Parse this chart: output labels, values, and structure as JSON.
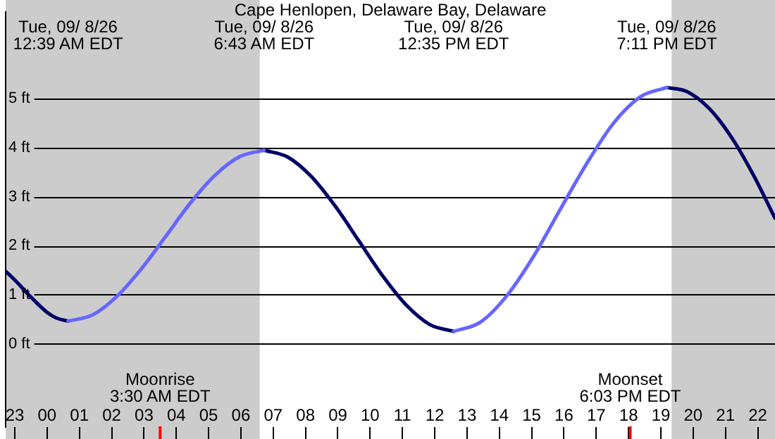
{
  "chart_data": {
    "type": "line",
    "title": "Cape Henlopen, Delaware Bay, Delaware",
    "xlim": [
      "--09-07T22:43",
      "--09-08T22:32"
    ],
    "xticks": [
      {
        "value": "--09-07T23:00",
        "label": "23"
      },
      {
        "value": "--09-08T00:00",
        "label": "00"
      },
      {
        "value": "--09-08T01:00",
        "label": "01"
      },
      {
        "value": "--09-08T02:00",
        "label": "02"
      },
      {
        "value": "--09-08T03:00",
        "label": "03"
      },
      {
        "value": "--09-08T04:00",
        "label": "04"
      },
      {
        "value": "--09-08T05:00",
        "label": "05"
      },
      {
        "value": "--09-08T06:00",
        "label": "06"
      },
      {
        "value": "--09-08T07:00",
        "label": "07"
      },
      {
        "value": "--09-08T08:00",
        "label": "08"
      },
      {
        "value": "--09-08T09:00",
        "label": "09"
      },
      {
        "value": "--09-08T10:00",
        "label": "10"
      },
      {
        "value": "--09-08T11:00",
        "label": "11"
      },
      {
        "value": "--09-08T12:00",
        "label": "12"
      },
      {
        "value": "--09-08T13:00",
        "label": "13"
      },
      {
        "value": "--09-08T14:00",
        "label": "14"
      },
      {
        "value": "--09-08T15:00",
        "label": "15"
      },
      {
        "value": "--09-08T16:00",
        "label": "16"
      },
      {
        "value": "--09-08T17:00",
        "label": "17"
      },
      {
        "value": "--09-08T18:00",
        "label": "18"
      },
      {
        "value": "--09-08T19:00",
        "label": "19"
      },
      {
        "value": "--09-08T20:00",
        "label": "20"
      },
      {
        "value": "--09-08T21:00",
        "label": "21"
      },
      {
        "value": "--09-08T22:00",
        "label": "22"
      }
    ],
    "ylim": [
      -1.7,
      6.77
    ],
    "yticks": [
      {
        "value": 0,
        "label": "0 ft"
      },
      {
        "value": 1,
        "label": "1 ft"
      },
      {
        "value": 2,
        "label": "2 ft"
      },
      {
        "value": 3,
        "label": "3 ft"
      },
      {
        "value": 4,
        "label": "4 ft"
      },
      {
        "value": 5,
        "label": "5 ft"
      }
    ],
    "grid": "y",
    "legend": false,
    "marker": "none",
    "line_style": "solid",
    "series": [
      {
        "color": "#6666ff",
        "x": [
          "--09-08T00:39",
          "--09-08T01:25",
          "--09-08T02:10",
          "--09-08T02:56",
          "--09-08T03:41",
          "--09-08T04:26",
          "--09-08T05:12",
          "--09-08T05:58",
          "--09-08T06:43",
          "--09-08T06:44",
          "--09-08T12:35",
          "--09-08T13:25",
          "--09-08T14:14",
          "--09-08T15:04",
          "--09-08T15:53",
          "--09-08T16:43",
          "--09-08T17:32",
          "--09-08T18:22",
          "--09-08T19:11"
        ],
        "values": [
          0.46,
          0.59,
          0.97,
          1.54,
          2.2,
          2.87,
          3.44,
          3.82,
          3.95,
          null,
          0.25,
          0.44,
          0.98,
          1.79,
          2.74,
          3.69,
          4.5,
          5.04,
          5.23
        ]
      },
      {
        "color": "#000066",
        "x": [
          "--09-07T22:43",
          "--09-07T23:00",
          "--09-07T23:30",
          "--09-08T00:00",
          "--09-08T00:18",
          "--09-08T00:39",
          "--09-08T00:40",
          "--09-08T06:43",
          "--09-08T07:27",
          "--09-08T08:11",
          "--09-08T08:55",
          "--09-08T09:39",
          "--09-08T10:23",
          "--09-08T11:07",
          "--09-08T11:51",
          "--09-08T12:35",
          "--09-08T12:36",
          "--09-08T19:11",
          "--09-08T19:48",
          "--09-08T20:30",
          "--09-08T21:12",
          "--09-08T21:54",
          "--09-08T22:32"
        ],
        "values": [
          1.48,
          1.3,
          0.95,
          0.64,
          0.52,
          0.46,
          null,
          3.95,
          3.81,
          3.41,
          2.81,
          2.1,
          1.39,
          0.79,
          0.39,
          0.25,
          null,
          5.23,
          5.15,
          4.8,
          4.2,
          3.4,
          2.56
        ]
      }
    ],
    "bands": [
      {
        "axis": "x",
        "from": "--09-07T22:43",
        "to": "--09-08T06:35",
        "color": "#cccccc"
      },
      {
        "axis": "x",
        "from": "--09-08T19:20",
        "to": "--09-08T22:32",
        "color": "#cccccc"
      }
    ],
    "ref_lines": [
      {
        "axis": "x",
        "value": "--09-08T03:30",
        "label": "Moonrise\n3:30 AM EDT",
        "color": "#ff0000"
      },
      {
        "axis": "x",
        "value": "--09-08T18:03",
        "label": "Moonset\n6:03 PM EDT",
        "color": "#ff0000"
      }
    ],
    "annotations": [
      "Tue, 09/ 8/26\n12:39 AM EDT",
      "Tue, 09/ 8/26\n6:43 AM EDT",
      "Tue, 09/ 8/26\n12:35 PM EDT",
      "Tue, 09/ 8/26\n7:11 PM EDT"
    ]
  }
}
